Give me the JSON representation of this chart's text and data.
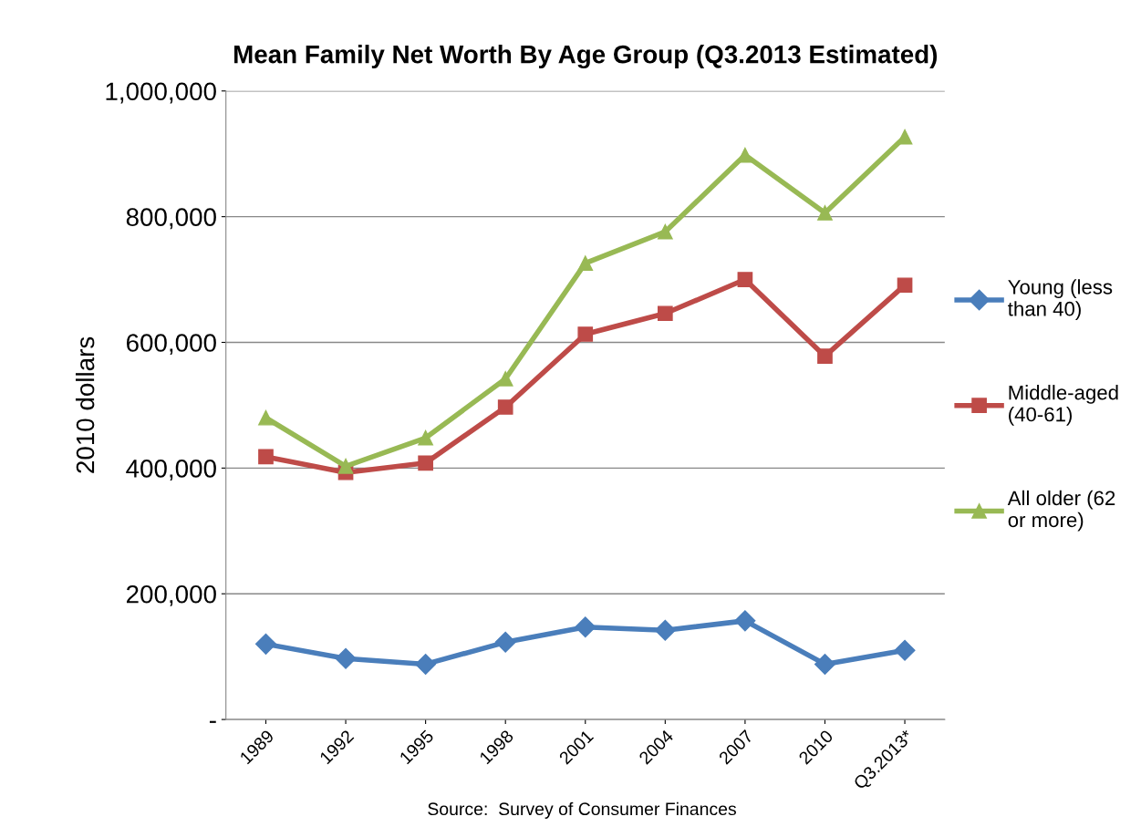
{
  "chart_data": {
    "type": "line",
    "title": "Mean Family Net Worth By Age Group (Q3.2013 Estimated)",
    "ylabel": "2010 dollars",
    "categories": [
      "1989",
      "1992",
      "1995",
      "1998",
      "2001",
      "2004",
      "2007",
      "2010",
      "Q3.2013*"
    ],
    "series": [
      {
        "name": "Young (less than 40)",
        "color": "#4a7ebb",
        "marker": "diamond",
        "values": [
          120000,
          97000,
          88000,
          123000,
          147000,
          142000,
          157000,
          88000,
          110000
        ]
      },
      {
        "name": "Middle-aged (40-61)",
        "color": "#be4b48",
        "marker": "square",
        "values": [
          418000,
          393000,
          408000,
          497000,
          613000,
          646000,
          700000,
          578000,
          691000
        ]
      },
      {
        "name": "All older (62 or more)",
        "color": "#98b954",
        "marker": "triangle",
        "values": [
          480000,
          403000,
          448000,
          542000,
          726000,
          776000,
          898000,
          806000,
          927000
        ]
      }
    ],
    "ylim": [
      0,
      1000000
    ],
    "yticks": [
      {
        "value": 0,
        "label": "-"
      },
      {
        "value": 200000,
        "label": "200,000"
      },
      {
        "value": 400000,
        "label": "400,000"
      },
      {
        "value": 600000,
        "label": "600,000"
      },
      {
        "value": 800000,
        "label": "800,000"
      },
      {
        "value": 1000000,
        "label": "1,000,000"
      }
    ],
    "grid": "y",
    "legend": "right",
    "line_style": "solid",
    "annotations": [
      "Source:  Survey of Consumer Finances"
    ]
  }
}
